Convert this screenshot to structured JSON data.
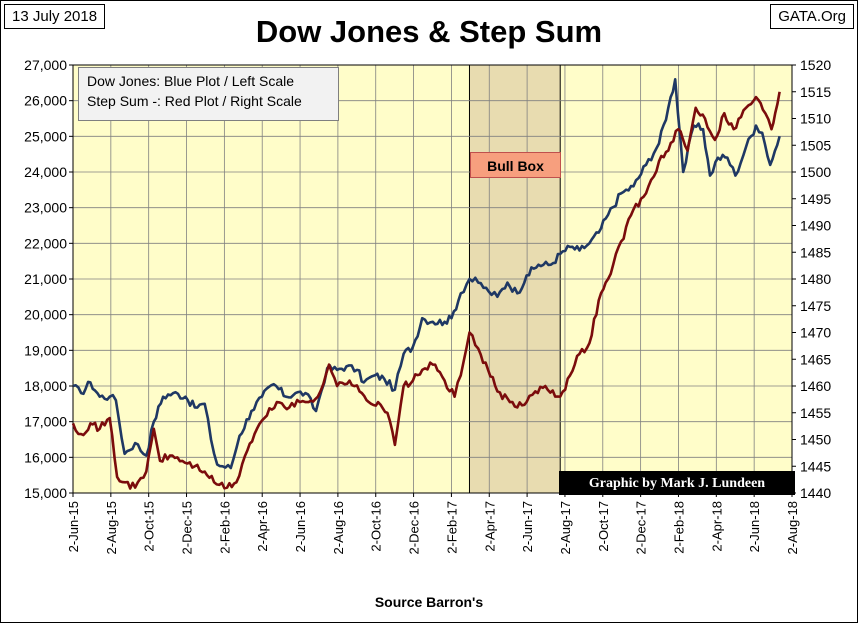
{
  "header": {
    "date": "13 July 2018",
    "title": "Dow Jones & Step Sum",
    "source_site": "GATA.Org"
  },
  "legend": {
    "line1": "Dow Jones: Blue Plot / Left Scale",
    "line2": "Step Sum -: Red Plot / Right Scale"
  },
  "annotations": {
    "bull_box": "Bull Box",
    "credit": "Graphic by Mark J. Lundeen",
    "source": "Source Barron's"
  },
  "colors": {
    "plot_bg": "#fffdc9",
    "grid": "#808080",
    "bull_box": "#e8dcb0",
    "dow": "#1f3864",
    "step_sum": "#7b0c0c"
  },
  "chart_data": {
    "type": "line",
    "title": "Dow Jones & Step Sum",
    "xlabel": "Source Barron's",
    "x_ticks": [
      "2-Jun-15",
      "2-Aug-15",
      "2-Oct-15",
      "2-Dec-15",
      "2-Feb-16",
      "2-Apr-16",
      "2-Jun-16",
      "2-Aug-16",
      "2-Oct-16",
      "2-Dec-16",
      "2-Feb-17",
      "2-Apr-17",
      "2-Jun-17",
      "2-Aug-17",
      "2-Oct-17",
      "2-Dec-17",
      "2-Feb-18",
      "2-Apr-18",
      "2-Jun-18",
      "2-Aug-18"
    ],
    "y_left": {
      "label": "Dow Jones",
      "range": [
        15000,
        27000
      ],
      "ticks": [
        "15,000",
        "16,000",
        "17,000",
        "18,000",
        "19,000",
        "20,000",
        "21,000",
        "22,000",
        "23,000",
        "24,000",
        "25,000",
        "26,000",
        "27,000"
      ]
    },
    "y_right": {
      "label": "Step Sum",
      "range": [
        1440,
        1520
      ],
      "ticks": [
        "1440",
        "1445",
        "1450",
        "1455",
        "1460",
        "1465",
        "1470",
        "1475",
        "1480",
        "1485",
        "1490",
        "1495",
        "1500",
        "1505",
        "1510",
        "1515",
        "1520"
      ]
    },
    "bull_box": {
      "start": "2017-03-01",
      "end": "2017-07-25"
    },
    "grid": true,
    "legend_position": "top-left",
    "series": [
      {
        "name": "Dow Jones",
        "axis": "left",
        "points": [
          [
            "2015-06-02",
            18000
          ],
          [
            "2015-06-15",
            17800
          ],
          [
            "2015-06-30",
            18100
          ],
          [
            "2015-07-15",
            17700
          ],
          [
            "2015-07-31",
            17700
          ],
          [
            "2015-08-10",
            17600
          ],
          [
            "2015-08-24",
            16100
          ],
          [
            "2015-09-10",
            16400
          ],
          [
            "2015-09-28",
            16050
          ],
          [
            "2015-10-10",
            17000
          ],
          [
            "2015-10-25",
            17700
          ],
          [
            "2015-11-10",
            17800
          ],
          [
            "2015-11-30",
            17700
          ],
          [
            "2015-12-15",
            17400
          ],
          [
            "2015-12-31",
            17500
          ],
          [
            "2016-01-10",
            16500
          ],
          [
            "2016-01-20",
            15800
          ],
          [
            "2016-02-11",
            15700
          ],
          [
            "2016-02-25",
            16600
          ],
          [
            "2016-03-15",
            17300
          ],
          [
            "2016-04-01",
            17700
          ],
          [
            "2016-04-20",
            18050
          ],
          [
            "2016-05-10",
            17700
          ],
          [
            "2016-05-25",
            17800
          ],
          [
            "2016-06-10",
            17800
          ],
          [
            "2016-06-27",
            17300
          ],
          [
            "2016-07-15",
            18500
          ],
          [
            "2016-07-31",
            18450
          ],
          [
            "2016-08-15",
            18550
          ],
          [
            "2016-09-01",
            18450
          ],
          [
            "2016-09-12",
            18100
          ],
          [
            "2016-09-30",
            18300
          ],
          [
            "2016-10-15",
            18200
          ],
          [
            "2016-11-01",
            17900
          ],
          [
            "2016-11-15",
            18900
          ],
          [
            "2016-11-30",
            19100
          ],
          [
            "2016-12-15",
            19900
          ],
          [
            "2017-01-01",
            19800
          ],
          [
            "2017-01-20",
            19800
          ],
          [
            "2017-01-31",
            19900
          ],
          [
            "2017-02-15",
            20600
          ],
          [
            "2017-03-01",
            21000
          ],
          [
            "2017-03-15",
            20900
          ],
          [
            "2017-04-01",
            20650
          ],
          [
            "2017-04-15",
            20500
          ],
          [
            "2017-05-01",
            20900
          ],
          [
            "2017-05-17",
            20600
          ],
          [
            "2017-06-01",
            21100
          ],
          [
            "2017-06-20",
            21400
          ],
          [
            "2017-07-10",
            21400
          ],
          [
            "2017-07-25",
            21700
          ],
          [
            "2017-08-10",
            21900
          ],
          [
            "2017-08-25",
            21800
          ],
          [
            "2017-09-10",
            22000
          ],
          [
            "2017-09-25",
            22300
          ],
          [
            "2017-10-10",
            22800
          ],
          [
            "2017-10-31",
            23400
          ],
          [
            "2017-11-20",
            23600
          ],
          [
            "2017-12-10",
            24200
          ],
          [
            "2017-12-31",
            24800
          ],
          [
            "2018-01-15",
            25800
          ],
          [
            "2018-01-26",
            26600
          ],
          [
            "2018-02-08",
            24000
          ],
          [
            "2018-02-25",
            25300
          ],
          [
            "2018-03-12",
            25200
          ],
          [
            "2018-03-23",
            23900
          ],
          [
            "2018-04-05",
            24400
          ],
          [
            "2018-04-20",
            24400
          ],
          [
            "2018-05-03",
            23900
          ],
          [
            "2018-05-20",
            24700
          ],
          [
            "2018-06-05",
            25300
          ],
          [
            "2018-06-15",
            25100
          ],
          [
            "2018-06-28",
            24200
          ],
          [
            "2018-07-13",
            25000
          ]
        ]
      },
      {
        "name": "Step Sum",
        "axis": "right",
        "points": [
          [
            "2015-06-02",
            1453
          ],
          [
            "2015-06-15",
            1451
          ],
          [
            "2015-06-30",
            1453
          ],
          [
            "2015-07-15",
            1452
          ],
          [
            "2015-07-31",
            1454
          ],
          [
            "2015-08-12",
            1443
          ],
          [
            "2015-08-25",
            1442
          ],
          [
            "2015-09-10",
            1441
          ],
          [
            "2015-09-28",
            1444
          ],
          [
            "2015-10-10",
            1452
          ],
          [
            "2015-10-20",
            1446
          ],
          [
            "2015-11-05",
            1447
          ],
          [
            "2015-11-25",
            1446
          ],
          [
            "2015-12-15",
            1445
          ],
          [
            "2015-12-31",
            1444
          ],
          [
            "2016-01-15",
            1442
          ],
          [
            "2016-02-05",
            1441
          ],
          [
            "2016-02-20",
            1442
          ],
          [
            "2016-03-05",
            1447
          ],
          [
            "2016-03-20",
            1451
          ],
          [
            "2016-04-05",
            1454
          ],
          [
            "2016-04-25",
            1457
          ],
          [
            "2016-05-15",
            1456
          ],
          [
            "2016-06-01",
            1457
          ],
          [
            "2016-06-15",
            1457
          ],
          [
            "2016-06-30",
            1458
          ],
          [
            "2016-07-18",
            1464
          ],
          [
            "2016-07-31",
            1460
          ],
          [
            "2016-08-20",
            1461
          ],
          [
            "2016-09-05",
            1459
          ],
          [
            "2016-09-20",
            1457
          ],
          [
            "2016-10-05",
            1457
          ],
          [
            "2016-10-20",
            1455
          ],
          [
            "2016-11-01",
            1449
          ],
          [
            "2016-11-15",
            1460
          ],
          [
            "2016-11-30",
            1461
          ],
          [
            "2016-12-15",
            1463
          ],
          [
            "2017-01-01",
            1464
          ],
          [
            "2017-01-20",
            1461
          ],
          [
            "2017-02-05",
            1458
          ],
          [
            "2017-02-15",
            1462
          ],
          [
            "2017-03-01",
            1470
          ],
          [
            "2017-03-15",
            1467
          ],
          [
            "2017-03-31",
            1463
          ],
          [
            "2017-04-15",
            1459
          ],
          [
            "2017-05-05",
            1457
          ],
          [
            "2017-05-17",
            1456
          ],
          [
            "2017-06-01",
            1457
          ],
          [
            "2017-06-15",
            1459
          ],
          [
            "2017-07-01",
            1460
          ],
          [
            "2017-07-25",
            1458
          ],
          [
            "2017-08-10",
            1462
          ],
          [
            "2017-08-25",
            1466
          ],
          [
            "2017-09-10",
            1468
          ],
          [
            "2017-09-25",
            1476
          ],
          [
            "2017-10-10",
            1480
          ],
          [
            "2017-10-31",
            1487
          ],
          [
            "2017-11-20",
            1493
          ],
          [
            "2017-12-10",
            1496
          ],
          [
            "2017-12-31",
            1502
          ],
          [
            "2018-01-15",
            1504
          ],
          [
            "2018-01-31",
            1508
          ],
          [
            "2018-02-15",
            1504
          ],
          [
            "2018-02-28",
            1512
          ],
          [
            "2018-03-15",
            1510
          ],
          [
            "2018-03-31",
            1506
          ],
          [
            "2018-04-15",
            1511
          ],
          [
            "2018-04-30",
            1508
          ],
          [
            "2018-05-20",
            1512
          ],
          [
            "2018-06-05",
            1514
          ],
          [
            "2018-06-20",
            1511
          ],
          [
            "2018-06-30",
            1508
          ],
          [
            "2018-07-06",
            1511
          ],
          [
            "2018-07-13",
            1515
          ]
        ]
      }
    ]
  }
}
